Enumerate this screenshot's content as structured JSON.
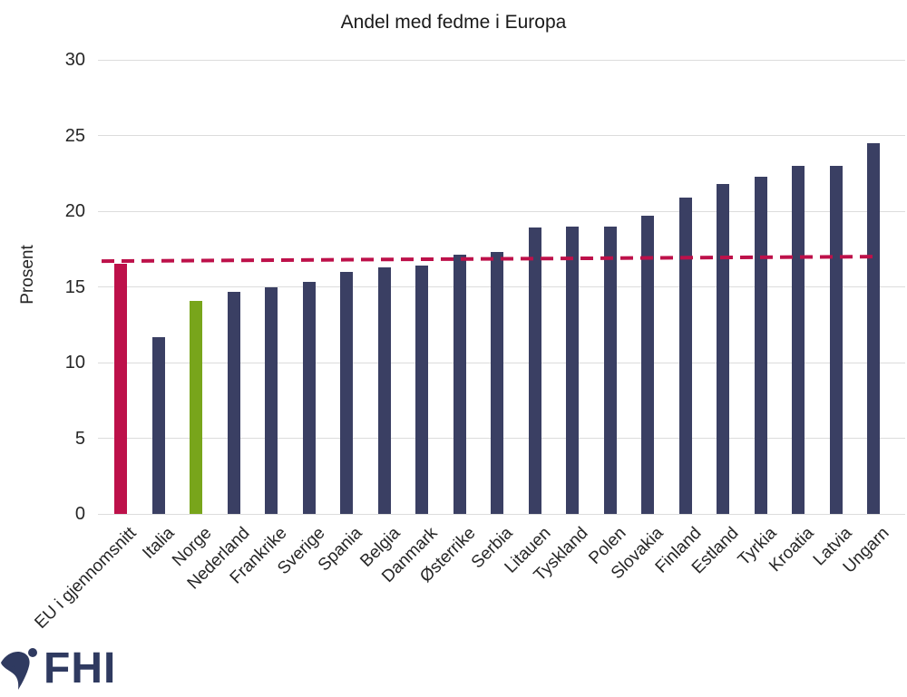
{
  "title": "Andel med fedme i Europa",
  "chart_data": {
    "type": "bar",
    "title": "Andel med fedme i Europa",
    "xlabel": "",
    "ylabel": "Prosent",
    "ylim": [
      0,
      30
    ],
    "yticks": [
      0,
      5,
      10,
      15,
      20,
      25,
      30
    ],
    "grid": "horizontal-light-gray",
    "legend": "none",
    "categories": [
      "EU i gjennomsnitt",
      "Italia",
      "Norge",
      "Nederland",
      "Frankrike",
      "Sverige",
      "Spania",
      "Belgia",
      "Danmark",
      "Østerrike",
      "Serbia",
      "Litauen",
      "Tyskland",
      "Polen",
      "Slovakia",
      "Finland",
      "Estland",
      "Tyrkia",
      "Kroatia",
      "Latvia",
      "Ungarn"
    ],
    "values": [
      16.5,
      11.7,
      14.1,
      14.7,
      15.0,
      15.3,
      16.0,
      16.3,
      16.4,
      17.1,
      17.3,
      18.9,
      19.0,
      19.0,
      19.7,
      20.9,
      21.8,
      22.3,
      23.0,
      23.0,
      24.5
    ],
    "bar_color_default": "#3A3F63",
    "bar_color_overrides": {
      "EU i gjennomsnitt": "#BD114A",
      "Norge": "#78A51B"
    },
    "reference_line": {
      "style": "dashed",
      "color": "#BD114A",
      "start_value": 16.7,
      "end_value": 17.0
    }
  },
  "logo": {
    "text": "FHI",
    "color": "#2F3A60"
  },
  "colors": {
    "gridline": "#DCDCDC",
    "axis_text": "#262626",
    "title_text": "#1A1A1A"
  }
}
